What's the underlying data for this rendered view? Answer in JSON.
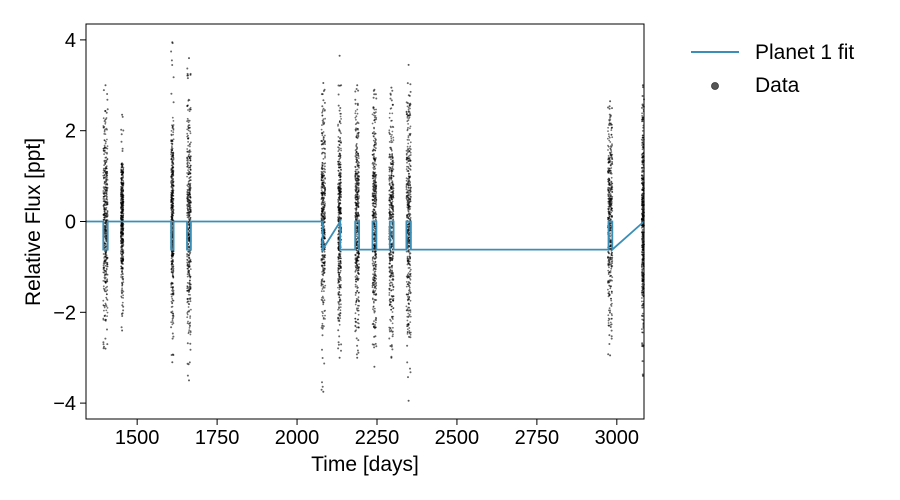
{
  "chart_data": {
    "type": "scatter",
    "xlabel": "Time [days]",
    "ylabel": "Relative Flux [ppt]",
    "xlim": [
      1340,
      3085
    ],
    "ylim": [
      -4.35,
      4.35
    ],
    "xticks": [
      1500,
      1750,
      2000,
      2250,
      2500,
      2750,
      3000
    ],
    "yticks": [
      -4,
      -2,
      0,
      2,
      4
    ],
    "xtick_labels": [
      "1500",
      "1750",
      "2000",
      "2250",
      "2500",
      "2750",
      "3000"
    ],
    "ytick_labels": [
      "−4",
      "−2",
      "0",
      "2",
      "4"
    ],
    "grid": false,
    "legend": {
      "position": "outside-top-right",
      "entries": [
        {
          "label": "Planet 1 fit",
          "kind": "line",
          "color": "#3b8fb7"
        },
        {
          "label": "Data",
          "kind": "marker",
          "color": "#555555"
        }
      ]
    },
    "series": [
      {
        "name": "Data",
        "kind": "scatter",
        "color": "#000000",
        "segments": [
          {
            "x": [
              1394,
              1408
            ],
            "ymin": -2.8,
            "ymax": 3.0,
            "dense_range": [
              -2.2,
              2.3
            ]
          },
          {
            "x": [
              1449,
              1457
            ],
            "ymin": -2.4,
            "ymax": 2.35,
            "dense_range": [
              -1.8,
              1.3
            ]
          },
          {
            "x": [
              1606,
              1614
            ],
            "ymin": -3.1,
            "ymax": 3.95,
            "dense_range": [
              -2.3,
              2.3
            ]
          },
          {
            "x": [
              1656,
              1668
            ],
            "ymin": -3.5,
            "ymax": 3.6,
            "dense_range": [
              -2.5,
              2.7
            ]
          },
          {
            "x": [
              2076,
              2088
            ],
            "ymin": -3.75,
            "ymax": 3.05,
            "dense_range": [
              -2.4,
              2.5
            ]
          },
          {
            "x": [
              2128,
              2138
            ],
            "ymin": -3.0,
            "ymax": 3.65,
            "dense_range": [
              -2.3,
              2.4
            ]
          },
          {
            "x": [
              2182,
              2194
            ],
            "ymin": -3.0,
            "ymax": 3.0,
            "dense_range": [
              -2.4,
              2.5
            ]
          },
          {
            "x": [
              2236,
              2248
            ],
            "ymin": -3.2,
            "ymax": 2.9,
            "dense_range": [
              -2.4,
              2.5
            ]
          },
          {
            "x": [
              2288,
              2302
            ],
            "ymin": -3.0,
            "ymax": 2.95,
            "dense_range": [
              -2.5,
              2.5
            ]
          },
          {
            "x": [
              2342,
              2356
            ],
            "ymin": -3.95,
            "ymax": 3.45,
            "dense_range": [
              -2.5,
              2.6
            ]
          },
          {
            "x": [
              2972,
              2986
            ],
            "ymin": -2.95,
            "ymax": 2.65,
            "dense_range": [
              -2.3,
              2.3
            ]
          },
          {
            "x": [
              3078,
              3085
            ],
            "ymin": -3.4,
            "ymax": 3.0,
            "dense_range": [
              -2.5,
              2.5
            ]
          }
        ]
      },
      {
        "name": "Planet 1 fit",
        "kind": "line",
        "color": "#3b8fb7",
        "x": [
          1340,
          1394,
          1394,
          1408,
          1408,
          1606,
          1606,
          1614,
          1614,
          1656,
          1656,
          1668,
          1668,
          2080,
          2080,
          2135,
          2135,
          2182,
          2182,
          2194,
          2194,
          2236,
          2236,
          2248,
          2248,
          2290,
          2290,
          2302,
          2302,
          2342,
          2342,
          2356,
          2356,
          2974,
          2974,
          2986,
          2986,
          3085
        ],
        "y": [
          0,
          0,
          -0.62,
          -0.62,
          0,
          0,
          -0.62,
          -0.62,
          0,
          0,
          -0.62,
          -0.62,
          0,
          0,
          -0.62,
          0,
          -0.62,
          -0.62,
          0,
          0,
          -0.62,
          -0.62,
          0,
          0,
          -0.62,
          -0.62,
          0,
          0,
          -0.62,
          -0.62,
          0,
          0,
          -0.62,
          -0.62,
          0,
          0,
          -0.62,
          0
        ]
      }
    ]
  }
}
